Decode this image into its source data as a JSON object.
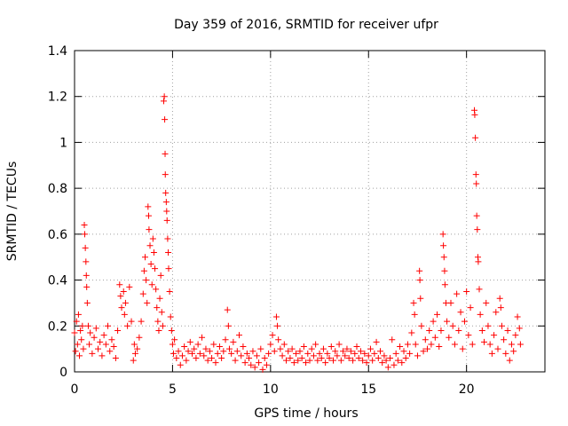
{
  "chart_data": {
    "type": "scatter",
    "title": "Day 359 of 2016, SRMTID for receiver ufpr",
    "xlabel": "GPS time / hours",
    "ylabel": "SRMTID / TECUs",
    "xlim": [
      0,
      24
    ],
    "ylim": [
      0,
      1.4
    ],
    "xticks": [
      0,
      5,
      10,
      15,
      20
    ],
    "xtick_labels": [
      "0",
      "5",
      "10",
      "15",
      "20"
    ],
    "yticks": [
      0,
      0.2,
      0.4,
      0.6,
      0.8,
      1,
      1.2,
      1.4
    ],
    "ytick_labels": [
      "0",
      "0.2",
      "0.4",
      "0.6",
      "0.8",
      "1",
      "1.2",
      "1.4"
    ],
    "grid": true,
    "marker": "+",
    "color": "#ff0000",
    "series": [
      {
        "name": "SRMTID",
        "points": [
          [
            0.0,
            0.17
          ],
          [
            0.05,
            0.09
          ],
          [
            0.1,
            0.22
          ],
          [
            0.15,
            0.12
          ],
          [
            0.2,
            0.25
          ],
          [
            0.25,
            0.07
          ],
          [
            0.3,
            0.18
          ],
          [
            0.35,
            0.14
          ],
          [
            0.4,
            0.2
          ],
          [
            0.45,
            0.1
          ],
          [
            0.5,
            0.64
          ],
          [
            0.52,
            0.6
          ],
          [
            0.55,
            0.54
          ],
          [
            0.58,
            0.48
          ],
          [
            0.6,
            0.42
          ],
          [
            0.62,
            0.37
          ],
          [
            0.65,
            0.3
          ],
          [
            0.7,
            0.2
          ],
          [
            0.75,
            0.12
          ],
          [
            0.8,
            0.17
          ],
          [
            0.9,
            0.08
          ],
          [
            1.0,
            0.15
          ],
          [
            1.1,
            0.19
          ],
          [
            1.2,
            0.1
          ],
          [
            1.3,
            0.13
          ],
          [
            1.4,
            0.07
          ],
          [
            1.5,
            0.16
          ],
          [
            1.6,
            0.12
          ],
          [
            1.7,
            0.2
          ],
          [
            1.8,
            0.09
          ],
          [
            1.9,
            0.14
          ],
          [
            2.0,
            0.11
          ],
          [
            2.1,
            0.06
          ],
          [
            2.2,
            0.18
          ],
          [
            2.3,
            0.38
          ],
          [
            2.35,
            0.33
          ],
          [
            2.4,
            0.28
          ],
          [
            2.5,
            0.35
          ],
          [
            2.55,
            0.25
          ],
          [
            2.6,
            0.3
          ],
          [
            2.7,
            0.2
          ],
          [
            2.8,
            0.37
          ],
          [
            2.9,
            0.22
          ],
          [
            3.0,
            0.05
          ],
          [
            3.05,
            0.12
          ],
          [
            3.1,
            0.08
          ],
          [
            3.2,
            0.1
          ],
          [
            3.3,
            0.15
          ],
          [
            3.4,
            0.22
          ],
          [
            3.5,
            0.34
          ],
          [
            3.55,
            0.44
          ],
          [
            3.6,
            0.5
          ],
          [
            3.65,
            0.4
          ],
          [
            3.7,
            0.3
          ],
          [
            3.75,
            0.72
          ],
          [
            3.78,
            0.68
          ],
          [
            3.8,
            0.62
          ],
          [
            3.85,
            0.55
          ],
          [
            3.9,
            0.47
          ],
          [
            3.95,
            0.38
          ],
          [
            4.0,
            0.58
          ],
          [
            4.05,
            0.52
          ],
          [
            4.1,
            0.45
          ],
          [
            4.15,
            0.36
          ],
          [
            4.2,
            0.28
          ],
          [
            4.25,
            0.22
          ],
          [
            4.3,
            0.18
          ],
          [
            4.35,
            0.32
          ],
          [
            4.4,
            0.42
          ],
          [
            4.45,
            0.26
          ],
          [
            4.5,
            0.2
          ],
          [
            4.55,
            1.18
          ],
          [
            4.58,
            1.2
          ],
          [
            4.6,
            1.1
          ],
          [
            4.62,
            0.95
          ],
          [
            4.63,
            0.86
          ],
          [
            4.65,
            0.78
          ],
          [
            4.68,
            0.74
          ],
          [
            4.7,
            0.7
          ],
          [
            4.72,
            0.66
          ],
          [
            4.75,
            0.58
          ],
          [
            4.78,
            0.52
          ],
          [
            4.8,
            0.45
          ],
          [
            4.85,
            0.35
          ],
          [
            4.9,
            0.24
          ],
          [
            4.95,
            0.18
          ],
          [
            5.0,
            0.12
          ],
          [
            5.05,
            0.08
          ],
          [
            5.1,
            0.14
          ],
          [
            5.2,
            0.06
          ],
          [
            5.3,
            0.09
          ],
          [
            5.4,
            0.03
          ],
          [
            5.5,
            0.07
          ],
          [
            5.6,
            0.11
          ],
          [
            5.7,
            0.05
          ],
          [
            5.8,
            0.09
          ],
          [
            5.9,
            0.13
          ],
          [
            6.0,
            0.08
          ],
          [
            6.1,
            0.1
          ],
          [
            6.2,
            0.06
          ],
          [
            6.3,
            0.12
          ],
          [
            6.4,
            0.08
          ],
          [
            6.5,
            0.15
          ],
          [
            6.6,
            0.07
          ],
          [
            6.7,
            0.1
          ],
          [
            6.8,
            0.05
          ],
          [
            6.9,
            0.09
          ],
          [
            7.0,
            0.06
          ],
          [
            7.1,
            0.12
          ],
          [
            7.2,
            0.04
          ],
          [
            7.3,
            0.08
          ],
          [
            7.4,
            0.11
          ],
          [
            7.5,
            0.06
          ],
          [
            7.6,
            0.09
          ],
          [
            7.7,
            0.14
          ],
          [
            7.8,
            0.27
          ],
          [
            7.85,
            0.2
          ],
          [
            7.9,
            0.1
          ],
          [
            8.0,
            0.08
          ],
          [
            8.1,
            0.13
          ],
          [
            8.2,
            0.05
          ],
          [
            8.3,
            0.09
          ],
          [
            8.4,
            0.16
          ],
          [
            8.5,
            0.07
          ],
          [
            8.6,
            0.11
          ],
          [
            8.7,
            0.04
          ],
          [
            8.8,
            0.08
          ],
          [
            8.9,
            0.06
          ],
          [
            9.0,
            0.03
          ],
          [
            9.1,
            0.09
          ],
          [
            9.2,
            0.02
          ],
          [
            9.3,
            0.07
          ],
          [
            9.4,
            0.04
          ],
          [
            9.5,
            0.1
          ],
          [
            9.6,
            0.01
          ],
          [
            9.7,
            0.06
          ],
          [
            9.8,
            0.03
          ],
          [
            9.9,
            0.08
          ],
          [
            10.0,
            0.12
          ],
          [
            10.1,
            0.16
          ],
          [
            10.2,
            0.09
          ],
          [
            10.3,
            0.24
          ],
          [
            10.35,
            0.2
          ],
          [
            10.4,
            0.14
          ],
          [
            10.5,
            0.1
          ],
          [
            10.6,
            0.07
          ],
          [
            10.7,
            0.12
          ],
          [
            10.8,
            0.05
          ],
          [
            10.9,
            0.09
          ],
          [
            11.0,
            0.06
          ],
          [
            11.1,
            0.1
          ],
          [
            11.2,
            0.04
          ],
          [
            11.3,
            0.08
          ],
          [
            11.4,
            0.05
          ],
          [
            11.5,
            0.09
          ],
          [
            11.6,
            0.06
          ],
          [
            11.7,
            0.11
          ],
          [
            11.8,
            0.04
          ],
          [
            11.9,
            0.08
          ],
          [
            12.0,
            0.05
          ],
          [
            12.1,
            0.1
          ],
          [
            12.2,
            0.07
          ],
          [
            12.3,
            0.12
          ],
          [
            12.4,
            0.05
          ],
          [
            12.5,
            0.08
          ],
          [
            12.6,
            0.06
          ],
          [
            12.7,
            0.1
          ],
          [
            12.8,
            0.04
          ],
          [
            12.9,
            0.08
          ],
          [
            13.0,
            0.06
          ],
          [
            13.1,
            0.11
          ],
          [
            13.2,
            0.05
          ],
          [
            13.3,
            0.09
          ],
          [
            13.4,
            0.07
          ],
          [
            13.5,
            0.12
          ],
          [
            13.6,
            0.05
          ],
          [
            13.7,
            0.09
          ],
          [
            13.8,
            0.07
          ],
          [
            13.9,
            0.1
          ],
          [
            14.0,
            0.06
          ],
          [
            14.1,
            0.09
          ],
          [
            14.2,
            0.05
          ],
          [
            14.3,
            0.08
          ],
          [
            14.4,
            0.11
          ],
          [
            14.5,
            0.06
          ],
          [
            14.6,
            0.09
          ],
          [
            14.7,
            0.05
          ],
          [
            14.8,
            0.08
          ],
          [
            14.9,
            0.04
          ],
          [
            15.0,
            0.07
          ],
          [
            15.1,
            0.1
          ],
          [
            15.2,
            0.05
          ],
          [
            15.3,
            0.08
          ],
          [
            15.4,
            0.13
          ],
          [
            15.5,
            0.06
          ],
          [
            15.6,
            0.09
          ],
          [
            15.7,
            0.04
          ],
          [
            15.8,
            0.07
          ],
          [
            15.9,
            0.05
          ],
          [
            16.0,
            0.02
          ],
          [
            16.1,
            0.06
          ],
          [
            16.2,
            0.14
          ],
          [
            16.3,
            0.03
          ],
          [
            16.4,
            0.08
          ],
          [
            16.5,
            0.05
          ],
          [
            16.6,
            0.11
          ],
          [
            16.7,
            0.04
          ],
          [
            16.8,
            0.09
          ],
          [
            16.9,
            0.06
          ],
          [
            17.0,
            0.12
          ],
          [
            17.1,
            0.08
          ],
          [
            17.2,
            0.17
          ],
          [
            17.3,
            0.3
          ],
          [
            17.35,
            0.25
          ],
          [
            17.4,
            0.12
          ],
          [
            17.5,
            0.07
          ],
          [
            17.6,
            0.44
          ],
          [
            17.62,
            0.4
          ],
          [
            17.65,
            0.32
          ],
          [
            17.7,
            0.2
          ],
          [
            17.8,
            0.09
          ],
          [
            17.9,
            0.14
          ],
          [
            18.0,
            0.1
          ],
          [
            18.1,
            0.18
          ],
          [
            18.2,
            0.12
          ],
          [
            18.3,
            0.22
          ],
          [
            18.4,
            0.15
          ],
          [
            18.5,
            0.25
          ],
          [
            18.6,
            0.11
          ],
          [
            18.7,
            0.18
          ],
          [
            18.8,
            0.6
          ],
          [
            18.82,
            0.55
          ],
          [
            18.85,
            0.5
          ],
          [
            18.88,
            0.44
          ],
          [
            18.9,
            0.38
          ],
          [
            18.95,
            0.3
          ],
          [
            19.0,
            0.22
          ],
          [
            19.1,
            0.15
          ],
          [
            19.2,
            0.3
          ],
          [
            19.3,
            0.2
          ],
          [
            19.4,
            0.12
          ],
          [
            19.5,
            0.34
          ],
          [
            19.6,
            0.18
          ],
          [
            19.7,
            0.26
          ],
          [
            19.8,
            0.1
          ],
          [
            19.9,
            0.22
          ],
          [
            20.0,
            0.35
          ],
          [
            20.1,
            0.16
          ],
          [
            20.2,
            0.28
          ],
          [
            20.3,
            0.12
          ],
          [
            20.4,
            1.14
          ],
          [
            20.42,
            1.12
          ],
          [
            20.45,
            1.02
          ],
          [
            20.48,
            0.86
          ],
          [
            20.5,
            0.82
          ],
          [
            20.52,
            0.68
          ],
          [
            20.55,
            0.62
          ],
          [
            20.58,
            0.5
          ],
          [
            20.6,
            0.48
          ],
          [
            20.65,
            0.36
          ],
          [
            20.7,
            0.25
          ],
          [
            20.8,
            0.18
          ],
          [
            20.9,
            0.13
          ],
          [
            21.0,
            0.3
          ],
          [
            21.1,
            0.2
          ],
          [
            21.2,
            0.12
          ],
          [
            21.3,
            0.08
          ],
          [
            21.4,
            0.16
          ],
          [
            21.5,
            0.26
          ],
          [
            21.6,
            0.1
          ],
          [
            21.7,
            0.32
          ],
          [
            21.75,
            0.28
          ],
          [
            21.8,
            0.2
          ],
          [
            21.9,
            0.14
          ],
          [
            22.0,
            0.08
          ],
          [
            22.1,
            0.18
          ],
          [
            22.2,
            0.05
          ],
          [
            22.3,
            0.12
          ],
          [
            22.4,
            0.09
          ],
          [
            22.5,
            0.16
          ],
          [
            22.6,
            0.24
          ],
          [
            22.7,
            0.19
          ],
          [
            22.75,
            0.12
          ]
        ]
      }
    ]
  }
}
